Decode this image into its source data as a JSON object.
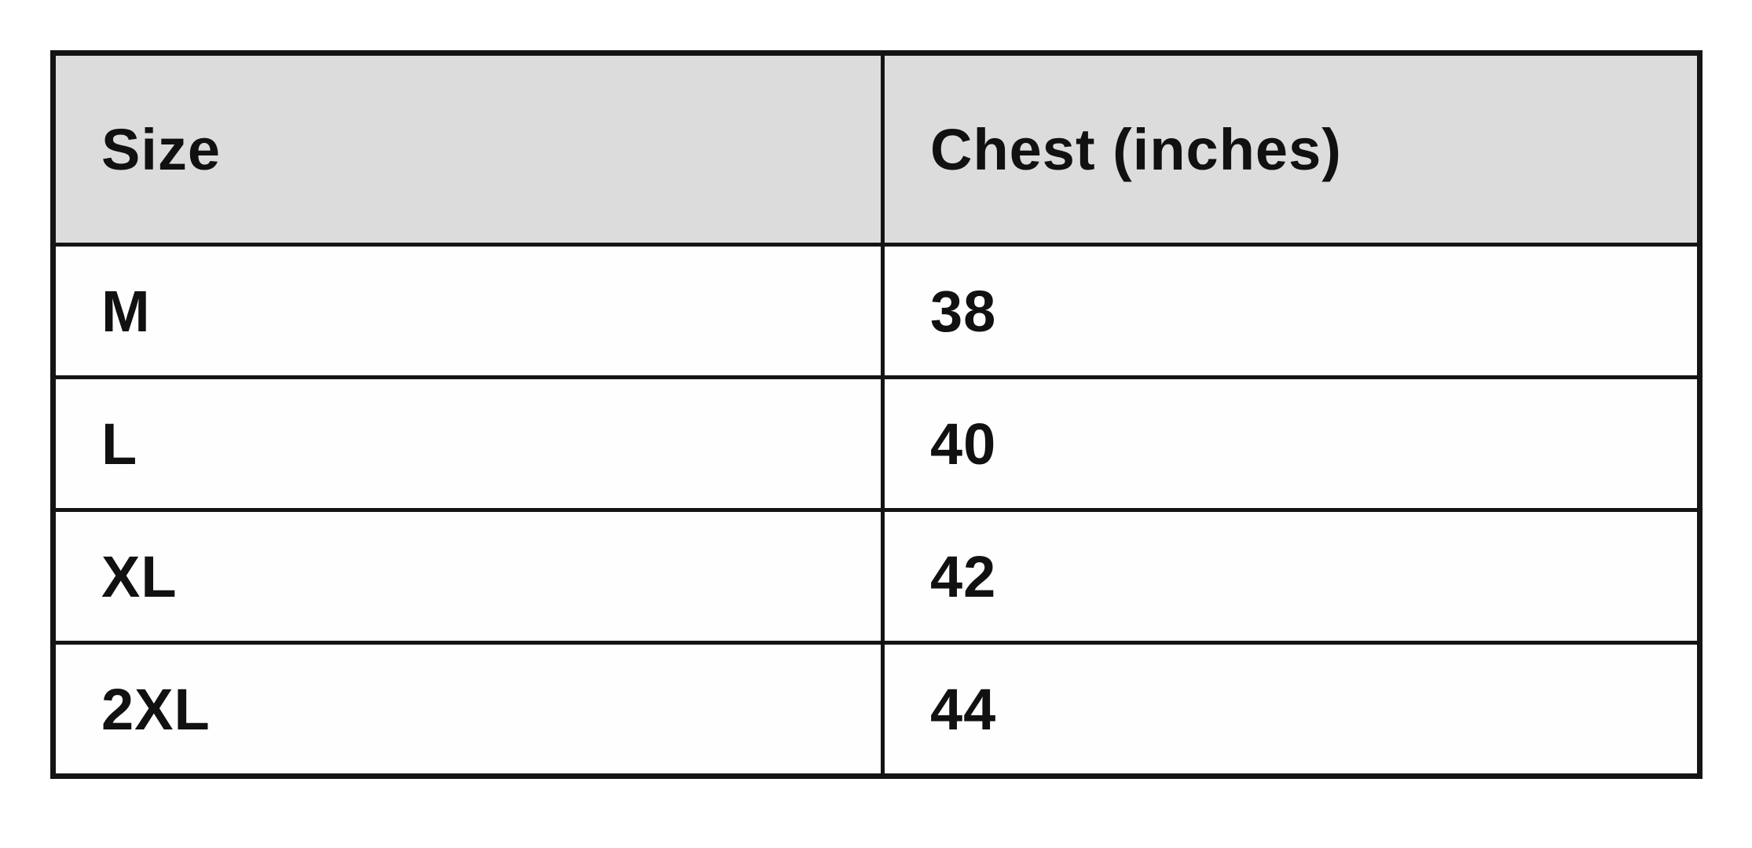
{
  "chart_data": {
    "type": "table",
    "title": "",
    "columns": [
      "Size",
      "Chest (inches)"
    ],
    "rows": [
      [
        "M",
        "38"
      ],
      [
        "L",
        "40"
      ],
      [
        "XL",
        "42"
      ],
      [
        "2XL",
        "44"
      ]
    ],
    "colors": {
      "header_background": "#dcdcdc",
      "row_background": "#fefefe",
      "border": "#141414",
      "text": "#111111",
      "page_background": "#ffffff"
    }
  }
}
